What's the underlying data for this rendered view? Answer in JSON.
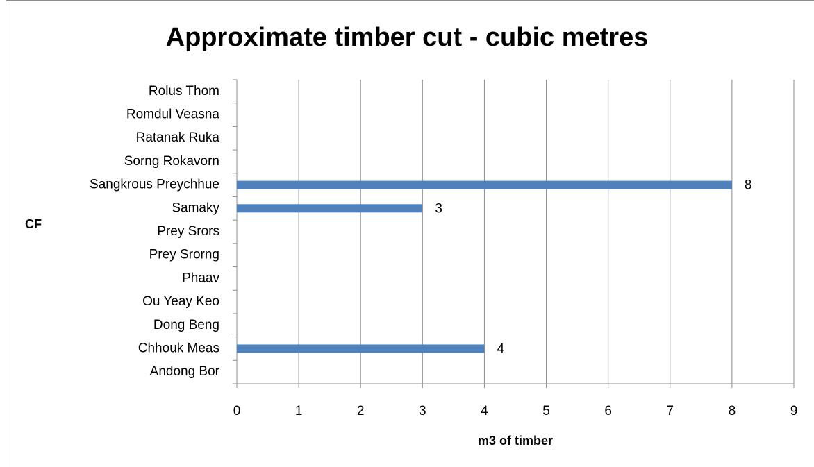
{
  "chart_data": {
    "type": "bar",
    "orientation": "horizontal",
    "title": "Approximate timber cut - cubic metres",
    "x_label": "m3 of timber",
    "y_label": "CF",
    "categories": [
      "Rolus Thom",
      "Romdul Veasna",
      "Ratanak Ruka",
      "Sorng Rokavorn",
      "Sangkrous Preychhue",
      "Samaky",
      "Prey Srors",
      "Prey Srorng",
      "Phaav",
      "Ou Yeay Keo",
      "Dong Beng",
      "Chhouk Meas",
      "Andong Bor"
    ],
    "values": [
      null,
      null,
      null,
      null,
      8,
      3,
      null,
      null,
      null,
      null,
      null,
      4,
      null
    ],
    "color": "#4f81bd",
    "xlim": [
      0,
      9
    ],
    "xticks": [
      0,
      1,
      2,
      3,
      4,
      5,
      6,
      7,
      8,
      9
    ],
    "grid": true
  }
}
